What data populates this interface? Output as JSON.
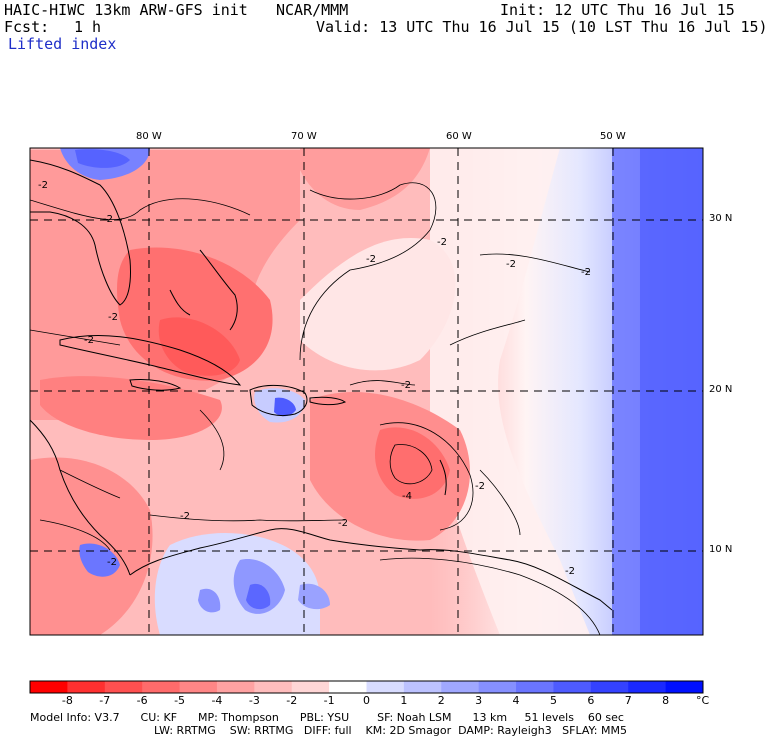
{
  "header": {
    "model_title": "HAIC-HIWC 13km ARW-GFS init",
    "center": "NCAR/MMM",
    "init": "Init: 12 UTC Thu 16 Jul 15",
    "fcst_label": "Fcst:",
    "fcst_value": "1 h",
    "valid": "Valid: 13 UTC Thu 16 Jul 15 (10 LST Thu 16 Jul 15)",
    "field": "Lifted index"
  },
  "map": {
    "lon_labels": [
      "80 W",
      "70 W",
      "60 W",
      "50 W"
    ],
    "lat_labels": [
      "30 N",
      "20 N",
      "10 N"
    ],
    "contour_labels": [
      "-2",
      "-2",
      "-2",
      "-2",
      "-2",
      "-2",
      "-2",
      "-2",
      "-2",
      "-2",
      "-2",
      "-2",
      "-2",
      "-2",
      "-4"
    ]
  },
  "colorbar": {
    "ticks": [
      "-8",
      "-7",
      "-6",
      "-5",
      "-4",
      "-3",
      "-2",
      "-1",
      "0",
      "1",
      "2",
      "3",
      "4",
      "5",
      "6",
      "7",
      "8"
    ],
    "unit": "°C",
    "colors": [
      "#ff0000",
      "#ff3030",
      "#ff5050",
      "#ff6b6b",
      "#ff8686",
      "#ffa2a2",
      "#ffbdbd",
      "#ffd6d6",
      "#ffffff",
      "#d8dcff",
      "#bcc2ff",
      "#a0a8ff",
      "#8690ff",
      "#6a75ff",
      "#4e5bff",
      "#3442ff",
      "#1a29ff",
      "#0010ff"
    ]
  },
  "footer": {
    "line1": "Model Info: V3.7      CU: KF      MP: Thompson      PBL: YSU        SF: Noah LSM      13 km     51 levels    60 sec",
    "line2": "LW: RRTMG    SW: RRTMG   DIFF: full    KM: 2D Smagor  DAMP: Rayleigh3   SFLAY: MM5"
  }
}
